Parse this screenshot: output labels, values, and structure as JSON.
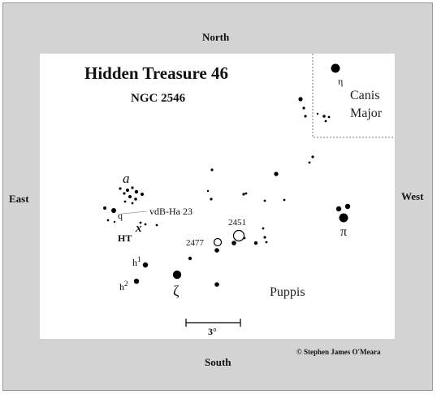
{
  "directions": {
    "north": "North",
    "south": "South",
    "east": "East",
    "west": "West"
  },
  "title": "Hidden Treasure 46",
  "subtitle": "NGC 2546",
  "labels": {
    "constellation_cma_line1": "Canis",
    "constellation_cma_line2": "Major",
    "constellation_pup": "Puppis",
    "eta": "η",
    "pi": "π",
    "zeta": "ζ",
    "a": "a",
    "q": "q",
    "x": "x",
    "ht": "HT",
    "vdb": "vdB-Ha 23",
    "h1_base": "h",
    "h1_sup": "1",
    "h2_base": "h",
    "h2_sup": "2",
    "ngc2451": "2451",
    "ngc2477": "2477",
    "scale": "3°"
  },
  "copyright": "© Stephen James O'Meara"
}
